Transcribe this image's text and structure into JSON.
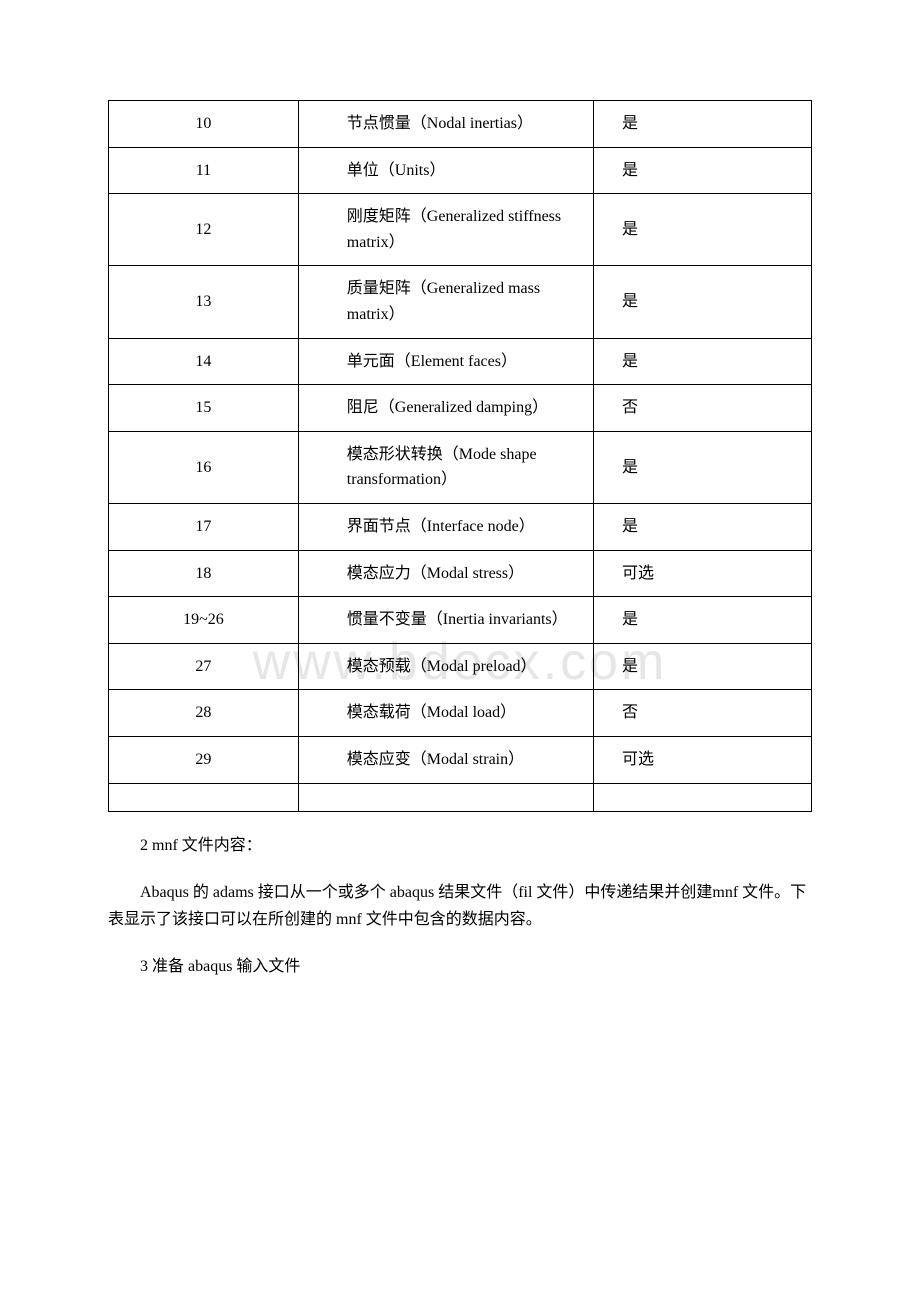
{
  "table": {
    "rows": [
      {
        "c1": "10",
        "c2": "节点惯量（Nodal inertias）",
        "c3": "是"
      },
      {
        "c1": "11",
        "c2": "单位（Units）",
        "c3": "是"
      },
      {
        "c1": "12",
        "c2": "刚度矩阵（Generalized stiffness matrix）",
        "c3": "是"
      },
      {
        "c1": "13",
        "c2": "质量矩阵（Generalized mass matrix）",
        "c3": "是"
      },
      {
        "c1": "14",
        "c2": "单元面（Element faces）",
        "c3": "是"
      },
      {
        "c1": "15",
        "c2": "阻尼（Generalized damping）",
        "c3": "否"
      },
      {
        "c1": "16",
        "c2": "模态形状转换（Mode shape transformation）",
        "c3": "是"
      },
      {
        "c1": "17",
        "c2": "界面节点（Interface node）",
        "c3": "是"
      },
      {
        "c1": "18",
        "c2": "模态应力（Modal stress）",
        "c3": "可选"
      },
      {
        "c1": "19~26",
        "c2": "惯量不变量（Inertia invariants）",
        "c3": "是"
      },
      {
        "c1": "27",
        "c2": "模态预载（Modal preload）",
        "c3": "是"
      },
      {
        "c1": "28",
        "c2": "模态载荷（Modal load）",
        "c3": "否"
      },
      {
        "c1": "29",
        "c2": "模态应变（Modal strain）",
        "c3": "可选"
      }
    ],
    "border_color": "#000000",
    "text_color": "#000000",
    "font_size": 16
  },
  "paragraphs": {
    "p1": "2 mnf 文件内容：",
    "p2": "Abaqus 的 adams 接口从一个或多个 abaqus 结果文件（fil 文件）中传递结果并创建mnf 文件。下表显示了该接口可以在所创建的 mnf 文件中包含的数据内容。",
    "p3": "3 准备 abaqus 输入文件"
  },
  "watermark": "www.bdocx.com",
  "colors": {
    "background": "#ffffff",
    "text": "#000000",
    "watermark": "#e6e6e6"
  }
}
